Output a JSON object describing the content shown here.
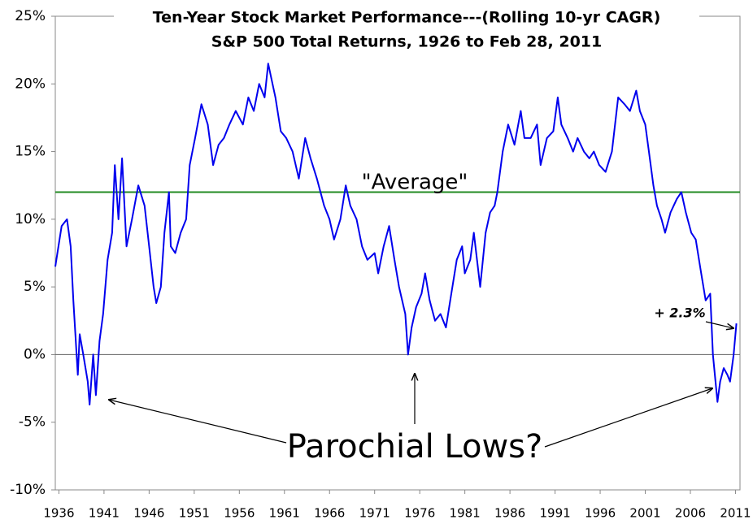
{
  "chart_data": {
    "type": "line",
    "title": "Ten-Year Stock Market Performance---(Rolling 10-yr CAGR)",
    "subtitle": "S&P 500 Total Returns, 1926 to Feb 28, 2011",
    "color": "#0000ee",
    "x": [
      1935.6,
      1936.3,
      1936.9,
      1937.3,
      1937.6,
      1938.1,
      1938.3,
      1938.7,
      1939.2,
      1939.4,
      1939.8,
      1940.1,
      1940.5,
      1940.9,
      1941.4,
      1941.9,
      1942.2,
      1942.6,
      1943.0,
      1943.5,
      1944.1,
      1944.8,
      1945.5,
      1946.0,
      1946.5,
      1946.8,
      1947.3,
      1947.7,
      1948.2,
      1948.4,
      1948.9,
      1949.5,
      1950.1,
      1950.5,
      1951.1,
      1951.8,
      1952.5,
      1953.1,
      1953.7,
      1954.3,
      1954.9,
      1955.6,
      1956.4,
      1957.0,
      1957.6,
      1958.2,
      1958.8,
      1959.2,
      1960.0,
      1960.6,
      1961.2,
      1961.9,
      1962.6,
      1963.3,
      1963.9,
      1964.6,
      1965.4,
      1966.0,
      1966.5,
      1967.2,
      1967.8,
      1968.3,
      1969.0,
      1969.6,
      1970.2,
      1971.0,
      1971.4,
      1972.0,
      1972.6,
      1973.2,
      1973.7,
      1974.4,
      1974.7,
      1975.1,
      1975.6,
      1976.2,
      1976.6,
      1977.1,
      1977.7,
      1978.3,
      1978.9,
      1979.5,
      1980.1,
      1980.7,
      1981.0,
      1981.6,
      1982.0,
      1982.7,
      1983.3,
      1983.8,
      1984.3,
      1984.6,
      1985.2,
      1985.8,
      1986.5,
      1987.2,
      1987.6,
      1988.3,
      1989.0,
      1989.4,
      1990.1,
      1990.8,
      1991.3,
      1991.7,
      1992.4,
      1993.0,
      1993.5,
      1994.2,
      1994.8,
      1995.3,
      1995.9,
      1996.6,
      1997.3,
      1998.0,
      1998.7,
      1999.3,
      2000.0,
      2000.4,
      2001.0,
      2001.4,
      2001.9,
      2002.3,
      2002.8,
      2003.2,
      2003.8,
      2004.5,
      2005.0,
      2005.5,
      2006.1,
      2006.6,
      2007.2,
      2007.7,
      2008.2,
      2008.5,
      2009.0,
      2009.3,
      2009.7,
      2010.1,
      2010.4,
      2010.8,
      2011.1
    ],
    "values": [
      6.5,
      9.5,
      10,
      8,
      4,
      -1.5,
      1.5,
      0,
      -2,
      -3.7,
      0,
      -3,
      1,
      3,
      7,
      9,
      14,
      10,
      14.5,
      8,
      10,
      12.5,
      11,
      8,
      5,
      3.8,
      5,
      9,
      12,
      8,
      7.5,
      9,
      10,
      14,
      16,
      18.5,
      17,
      14,
      15.5,
      16,
      17,
      18,
      17,
      19,
      18,
      20,
      19,
      21.5,
      19,
      16.5,
      16,
      15,
      13,
      16,
      14.5,
      13,
      11,
      10,
      8.5,
      10,
      12.5,
      11,
      10,
      8,
      7,
      7.5,
      6,
      8,
      9.5,
      7,
      5,
      3,
      0,
      2,
      3.5,
      4.5,
      6,
      4,
      2.5,
      3,
      2,
      4.5,
      7,
      8,
      6,
      7,
      9,
      5,
      9,
      10.5,
      11,
      12,
      15,
      17,
      15.5,
      18,
      16,
      16,
      17,
      14,
      16,
      16.5,
      19,
      17,
      16,
      15,
      16,
      15,
      14.5,
      15,
      14,
      13.5,
      15,
      19,
      18.5,
      18,
      19.5,
      18,
      17,
      15,
      12.5,
      11,
      10,
      9,
      10.5,
      11.5,
      12,
      10.5,
      9,
      8.5,
      6,
      4,
      4.5,
      0,
      -3.5,
      -2,
      -1,
      -1.5,
      -2,
      0,
      2.3
    ],
    "xlim": [
      1935.6,
      2011.5
    ],
    "xticks": [
      1936,
      1941,
      1946,
      1951,
      1956,
      1961,
      1966,
      1971,
      1976,
      1981,
      1986,
      1991,
      1996,
      2001,
      2006,
      2011
    ],
    "ylim": [
      -10,
      25
    ],
    "yticks": [
      {
        "value": -10,
        "label": "-10%"
      },
      {
        "value": -5,
        "label": "-5%"
      },
      {
        "value": 0,
        "label": "0%"
      },
      {
        "value": 5,
        "label": "5%"
      },
      {
        "value": 10,
        "label": "10%"
      },
      {
        "value": 15,
        "label": "15%"
      },
      {
        "value": 20,
        "label": "20%"
      },
      {
        "value": 25,
        "label": "25%"
      }
    ],
    "reference_line": {
      "value": 12,
      "label": "\"Average\"",
      "color": "#228b22"
    },
    "annotations": [
      "Parochial Lows?",
      "+ 2.3%"
    ]
  }
}
